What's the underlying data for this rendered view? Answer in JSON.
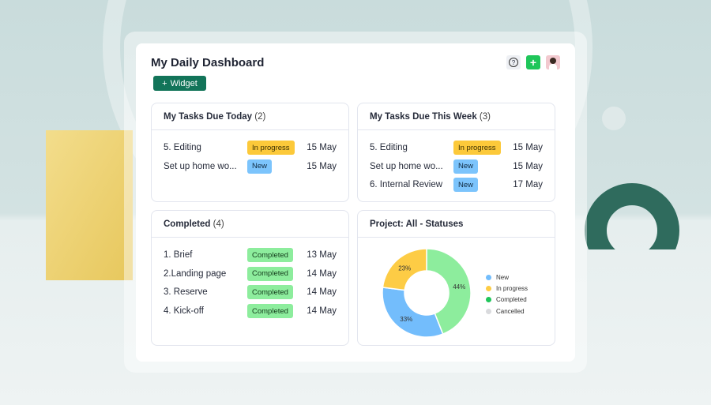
{
  "header": {
    "title": "My Daily Dashboard",
    "add_widget_label": "Widget"
  },
  "icons": {
    "help": "help-circle-icon",
    "add": "plus-icon",
    "avatar": "user-avatar"
  },
  "today": {
    "title": "My Tasks Due Today",
    "count": "(2)",
    "rows": [
      {
        "name": "5. Editing",
        "status": "In progress",
        "date": "15 May"
      },
      {
        "name": "Set up home wo...",
        "status": "New",
        "date": "15 May"
      }
    ]
  },
  "week": {
    "title": "My Tasks Due This Week",
    "count": "(3)",
    "rows": [
      {
        "name": "5. Editing",
        "status": "In progress",
        "date": "15 May"
      },
      {
        "name": "Set up home wo...",
        "status": "New",
        "date": "15 May"
      },
      {
        "name": "6. Internal Review",
        "status": "New",
        "date": "17 May"
      }
    ]
  },
  "completed": {
    "title": "Completed",
    "count": "(4)",
    "rows": [
      {
        "name": "1. Brief",
        "status": "Completed",
        "date": "13 May"
      },
      {
        "name": "2.Landing page",
        "status": "Completed",
        "date": "14 May"
      },
      {
        "name": "3. Reserve",
        "status": "Completed",
        "date": "14 May"
      },
      {
        "name": "4. Kick-off",
        "status": "Completed",
        "date": "14 May"
      }
    ]
  },
  "statuses": {
    "title": "Project: All - Statuses"
  },
  "chart_data": {
    "type": "pie",
    "donut": true,
    "slices": [
      {
        "label": "Completed",
        "value": 44,
        "text": "44%",
        "color": "#8ded9d"
      },
      {
        "label": "New",
        "value": 33,
        "text": "33%",
        "color": "#73bdfc"
      },
      {
        "label": "In progress",
        "value": 23,
        "text": "23%",
        "color": "#fdcc45"
      }
    ],
    "legend": [
      {
        "label": "New",
        "color": "#73bdfc"
      },
      {
        "label": "In progress",
        "color": "#fdcc45"
      },
      {
        "label": "Completed",
        "color": "#1fc65a"
      },
      {
        "label": "Cancelled",
        "color": "#d9dadd"
      }
    ],
    "legend_position": "right"
  }
}
